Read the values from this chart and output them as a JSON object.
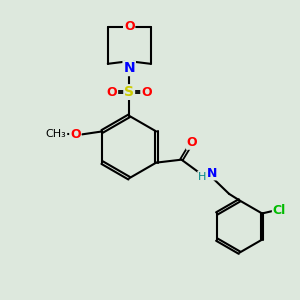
{
  "bg_color": "#dde8dd",
  "bond_color": "#000000",
  "colors": {
    "O": "#ff0000",
    "N": "#0000ff",
    "S": "#cccc00",
    "Cl": "#00bb00",
    "C": "#000000",
    "H": "#008888"
  },
  "figsize": [
    3.0,
    3.0
  ],
  "dpi": 100
}
